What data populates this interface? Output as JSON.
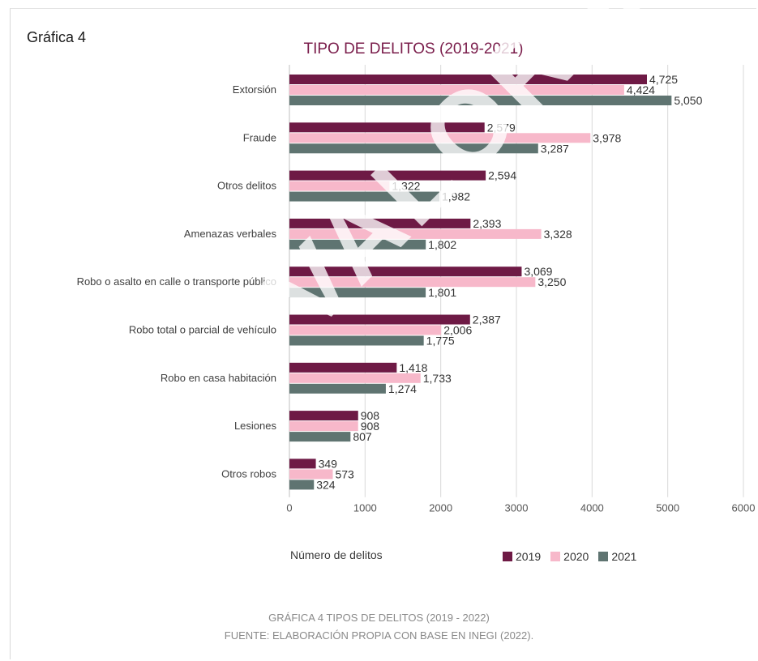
{
  "figure_label": "Gráfica 4",
  "watermark": "VALOR LEGAL",
  "caption": {
    "line1": "GRÁFICA 4 TIPOS DE DELITOS (2019 - 2022)",
    "line2": "FUENTE: ELABORACIÓN PROPIA CON BASE EN INEGI (2022)."
  },
  "chart_data": {
    "type": "bar",
    "orientation": "horizontal",
    "title": "TIPO DE DELITOS (2019-2021)",
    "xlabel": "Número de delitos",
    "ylabel": "",
    "xlim": [
      0,
      6000
    ],
    "xticks": [
      "0",
      "1000",
      "2000",
      "3000",
      "4000",
      "5000",
      "6000"
    ],
    "grid": true,
    "legend_position": "bottom-right",
    "categories": [
      "Extorsión",
      "Fraude",
      "Otros delitos",
      "Amenazas verbales",
      "Robo o asalto en calle o transporte público",
      "Robo total o parcial de vehículo",
      "Robo en casa habitación",
      "Lesiones",
      "Otros robos"
    ],
    "series": [
      {
        "name": "2019",
        "color": "#6e1a45",
        "values": [
          4725,
          2579,
          2594,
          2393,
          3069,
          2387,
          1418,
          908,
          349
        ],
        "labels": [
          "4,725",
          "2,579",
          "2,594",
          "2,393",
          "3,069",
          "2,387",
          "1,418",
          "908",
          "349"
        ]
      },
      {
        "name": "2020",
        "color": "#f7b8ca",
        "values": [
          4424,
          3978,
          1322,
          3328,
          3250,
          2006,
          1733,
          908,
          573
        ],
        "labels": [
          "4,424",
          "3,978",
          "1,322",
          "3,328",
          "3,250",
          "2,006",
          "1,733",
          "908",
          "573"
        ]
      },
      {
        "name": "2021",
        "color": "#5f7471",
        "values": [
          5050,
          3287,
          1982,
          1802,
          1801,
          1775,
          1274,
          807,
          324
        ],
        "labels": [
          "5,050",
          "3,287",
          "1,982",
          "1,802",
          "1,801",
          "1,775",
          "1,274",
          "807",
          "324"
        ]
      }
    ]
  }
}
